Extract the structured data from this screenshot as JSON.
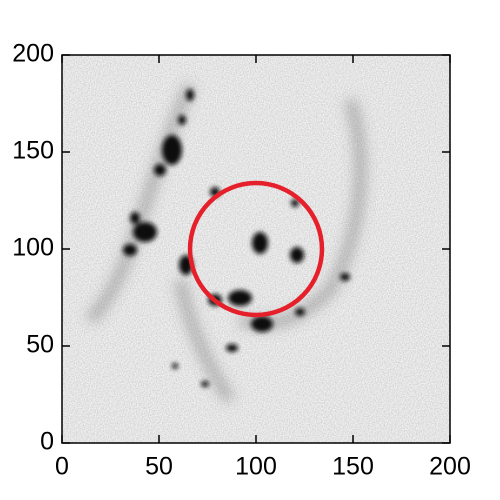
{
  "chart_data": {
    "type": "image",
    "xlim": [
      0,
      200
    ],
    "ylim": [
      0,
      200
    ],
    "xticks": [
      0,
      50,
      100,
      150,
      200
    ],
    "yticks": [
      0,
      50,
      100,
      150,
      200
    ],
    "circle": {
      "x": 100,
      "y": 100,
      "r": 34,
      "color": "#e5202a"
    }
  }
}
